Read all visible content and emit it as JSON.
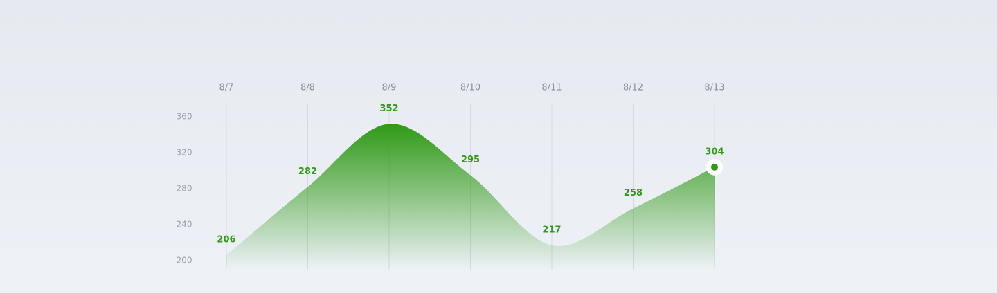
{
  "chart_data": {
    "type": "area",
    "categories": [
      "8/7",
      "8/8",
      "8/9",
      "8/10",
      "8/11",
      "8/12",
      "8/13"
    ],
    "values": [
      206,
      282,
      352,
      295,
      217,
      258,
      304
    ],
    "color": "#2f9a16",
    "ylim": [
      190,
      370
    ],
    "yticks": [
      200,
      240,
      280,
      320,
      360
    ],
    "grid": true,
    "highlight_index": 6
  }
}
